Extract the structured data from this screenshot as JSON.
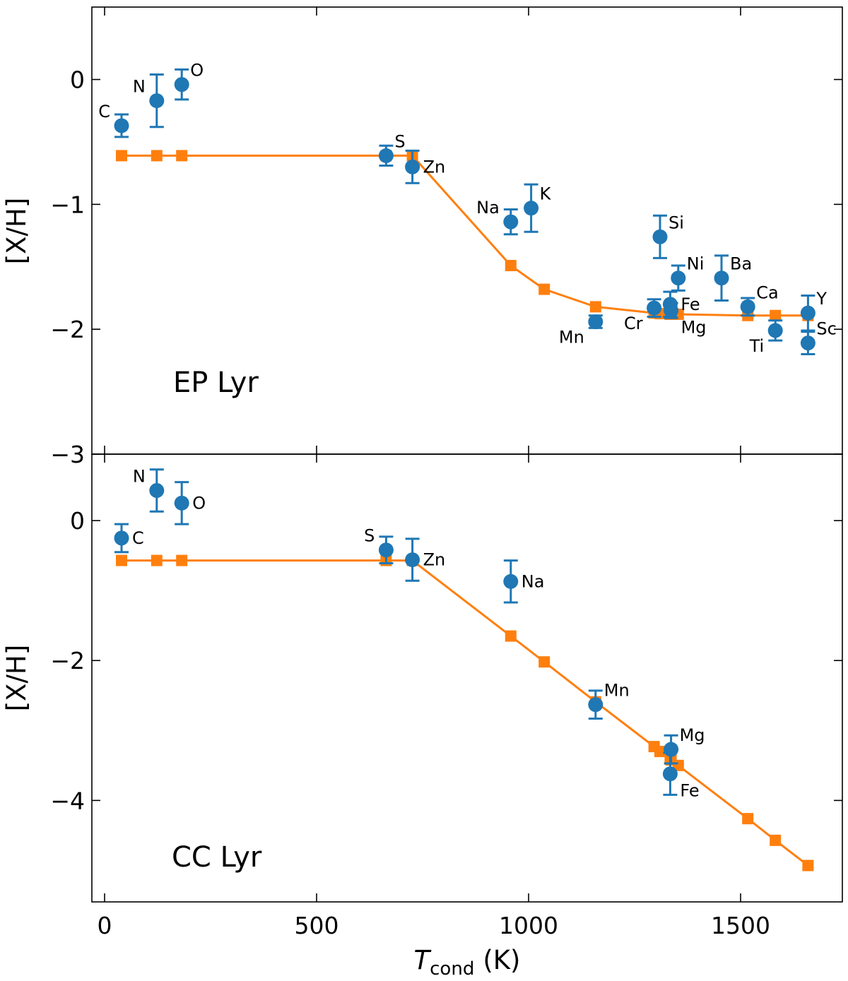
{
  "chart_data": {
    "type": "scatter",
    "xlabel_main": "T",
    "xlabel_sub": "cond",
    "xlabel_unit": "(K)",
    "ylabel": "[X/H]",
    "xlim": [
      -30,
      1740
    ],
    "x_ticks": [
      0,
      500,
      1000,
      1500
    ],
    "x_tick_labels": [
      "0",
      "500",
      "1000",
      "1500"
    ],
    "colors": {
      "observed": "#1f77b4",
      "model": "#ff7f0e"
    },
    "panels": [
      {
        "name": "EP Lyr",
        "ylim": [
          -3.0,
          0.58
        ],
        "y_ticks": [
          0,
          -1,
          -2,
          -3
        ],
        "y_tick_labels": [
          "0",
          "−1",
          "−2",
          "−3"
        ],
        "observed": [
          {
            "element": "C",
            "x": 40,
            "y": -0.37,
            "err": 0.09,
            "label_pos": "left-up"
          },
          {
            "element": "N",
            "x": 123,
            "y": -0.17,
            "err": 0.21,
            "label_pos": "left-up"
          },
          {
            "element": "O",
            "x": 182,
            "y": -0.04,
            "err": 0.12,
            "label_pos": "right-up"
          },
          {
            "element": "S",
            "x": 664,
            "y": -0.61,
            "err": 0.08,
            "label_pos": "right-up"
          },
          {
            "element": "Zn",
            "x": 726,
            "y": -0.7,
            "err": 0.13,
            "label_pos": "right"
          },
          {
            "element": "Na",
            "x": 958,
            "y": -1.14,
            "err": 0.1,
            "label_pos": "left-up"
          },
          {
            "element": "K",
            "x": 1006,
            "y": -1.03,
            "err": 0.19,
            "label_pos": "right-up"
          },
          {
            "element": "Mn",
            "x": 1158,
            "y": -1.94,
            "err": 0.05,
            "label_pos": "left-down"
          },
          {
            "element": "Cr",
            "x": 1296,
            "y": -1.83,
            "err": 0.07,
            "label_pos": "left-down"
          },
          {
            "element": "Si",
            "x": 1310,
            "y": -1.26,
            "err": 0.17,
            "label_pos": "right-up"
          },
          {
            "element": "Mg",
            "x": 1336,
            "y": -1.85,
            "err": 0.06,
            "label_pos": "right-down"
          },
          {
            "element": "Fe",
            "x": 1334,
            "y": -1.8,
            "err": 0.1,
            "label_pos": "right"
          },
          {
            "element": "Ni",
            "x": 1353,
            "y": -1.59,
            "err": 0.1,
            "label_pos": "right-up"
          },
          {
            "element": "Ba",
            "x": 1455,
            "y": -1.59,
            "err": 0.18,
            "label_pos": "right-up"
          },
          {
            "element": "Ca",
            "x": 1517,
            "y": -1.82,
            "err": 0.07,
            "label_pos": "right-up"
          },
          {
            "element": "Ti",
            "x": 1582,
            "y": -2.01,
            "err": 0.08,
            "label_pos": "left-down"
          },
          {
            "element": "Y",
            "x": 1659,
            "y": -1.87,
            "err": 0.14,
            "label_pos": "right-up"
          },
          {
            "element": "Sc",
            "x": 1659,
            "y": -2.11,
            "err": 0.09,
            "label_pos": "right-up"
          }
        ],
        "model": {
          "x": [
            40,
            123,
            182,
            664,
            726,
            958,
            1037,
            1158,
            1296,
            1310,
            1334,
            1336,
            1353,
            1517,
            1582,
            1659
          ],
          "y": [
            -0.61,
            -0.61,
            -0.61,
            -0.61,
            -0.61,
            -1.49,
            -1.68,
            -1.82,
            -1.87,
            -1.875,
            -1.88,
            -1.88,
            -1.88,
            -1.89,
            -1.89,
            -1.89
          ]
        }
      },
      {
        "name": "CC Lyr",
        "ylim": [
          -5.45,
          0.95
        ],
        "y_ticks": [
          0,
          -2,
          -4
        ],
        "y_tick_labels": [
          "0",
          "−2",
          "−4"
        ],
        "observed": [
          {
            "element": "C",
            "x": 40,
            "y": -0.25,
            "err": 0.2,
            "label_pos": "right"
          },
          {
            "element": "N",
            "x": 123,
            "y": 0.43,
            "err": 0.3,
            "label_pos": "left-up"
          },
          {
            "element": "O",
            "x": 182,
            "y": 0.25,
            "err": 0.3,
            "label_pos": "right"
          },
          {
            "element": "S",
            "x": 664,
            "y": -0.42,
            "err": 0.19,
            "label_pos": "left-up"
          },
          {
            "element": "Zn",
            "x": 726,
            "y": -0.56,
            "err": 0.3,
            "label_pos": "right"
          },
          {
            "element": "Na",
            "x": 958,
            "y": -0.87,
            "err": 0.3,
            "label_pos": "right"
          },
          {
            "element": "Mn",
            "x": 1158,
            "y": -2.63,
            "err": 0.2,
            "label_pos": "right-up"
          },
          {
            "element": "Mg",
            "x": 1336,
            "y": -3.27,
            "err": 0.2,
            "label_pos": "right-up"
          },
          {
            "element": "Fe",
            "x": 1334,
            "y": -3.62,
            "err": 0.3,
            "label_pos": "right-down"
          }
        ],
        "model": {
          "x": [
            40,
            123,
            182,
            664,
            726,
            958,
            1037,
            1158,
            1296,
            1310,
            1334,
            1336,
            1353,
            1517,
            1582,
            1659
          ],
          "y": [
            -0.57,
            -0.57,
            -0.57,
            -0.57,
            -0.57,
            -1.65,
            -2.02,
            -2.59,
            -3.23,
            -3.3,
            -3.41,
            -3.42,
            -3.5,
            -4.26,
            -4.57,
            -4.93
          ]
        }
      }
    ]
  }
}
